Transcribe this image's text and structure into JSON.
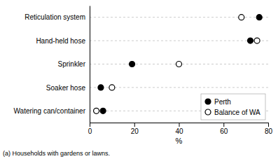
{
  "chart_data": {
    "type": "dot",
    "orientation": "horizontal",
    "categories": [
      "Reticulation system",
      "Hand-held hose",
      "Sprinkler",
      "Soaker hose",
      "Watering can/container"
    ],
    "series": [
      {
        "name": "Perth",
        "color": "#000000",
        "marker": "circle",
        "values": [
          76,
          72,
          19,
          5,
          6
        ]
      },
      {
        "name": "Balance of WA",
        "color": "#000000",
        "marker": "circle-open",
        "values": [
          68,
          75,
          40,
          10,
          3
        ]
      }
    ],
    "xlabel": "%",
    "xlim": [
      0,
      80
    ],
    "xticks": [
      0,
      20,
      40,
      60,
      80
    ],
    "grid": true,
    "legend": "lower right",
    "footnote": "(a) Households with gardens or lawns."
  }
}
